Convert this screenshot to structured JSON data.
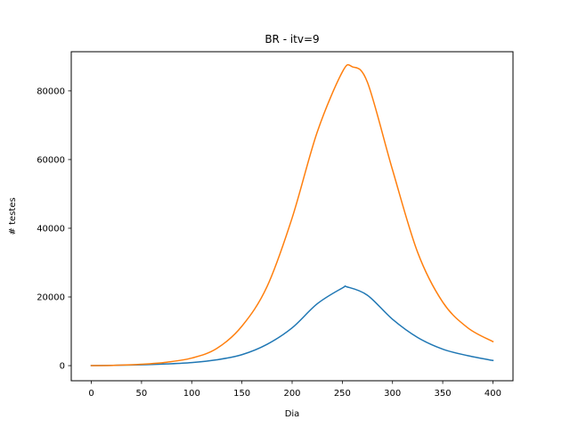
{
  "chart_data": {
    "type": "line",
    "title": "BR - itv=9",
    "xlabel": "Dia",
    "ylabel": "# testes",
    "xlim": [
      -20,
      420
    ],
    "ylim": [
      -4400,
      91400
    ],
    "xticks": [
      0,
      50,
      100,
      150,
      200,
      250,
      300,
      350,
      400
    ],
    "yticks": [
      0,
      20000,
      40000,
      60000,
      80000
    ],
    "grid": false,
    "legend": "none",
    "series": [
      {
        "color": "#1f77b4",
        "x": [
          0,
          25,
          50,
          75,
          100,
          125,
          150,
          175,
          200,
          225,
          250,
          255,
          275,
          300,
          325,
          350,
          375,
          400
        ],
        "y": [
          0,
          100,
          250,
          500,
          900,
          1700,
          3200,
          6200,
          11000,
          18000,
          22600,
          22900,
          20500,
          13500,
          8200,
          4800,
          2900,
          1500
        ]
      },
      {
        "color": "#ff7f0e",
        "x": [
          0,
          25,
          50,
          75,
          100,
          125,
          150,
          175,
          200,
          225,
          250,
          260,
          275,
          300,
          325,
          350,
          375,
          400
        ],
        "y": [
          0,
          100,
          400,
          1000,
          2200,
          5000,
          11500,
          23000,
          43000,
          68000,
          85500,
          87000,
          82500,
          57000,
          33000,
          18500,
          11000,
          7000
        ]
      }
    ]
  }
}
